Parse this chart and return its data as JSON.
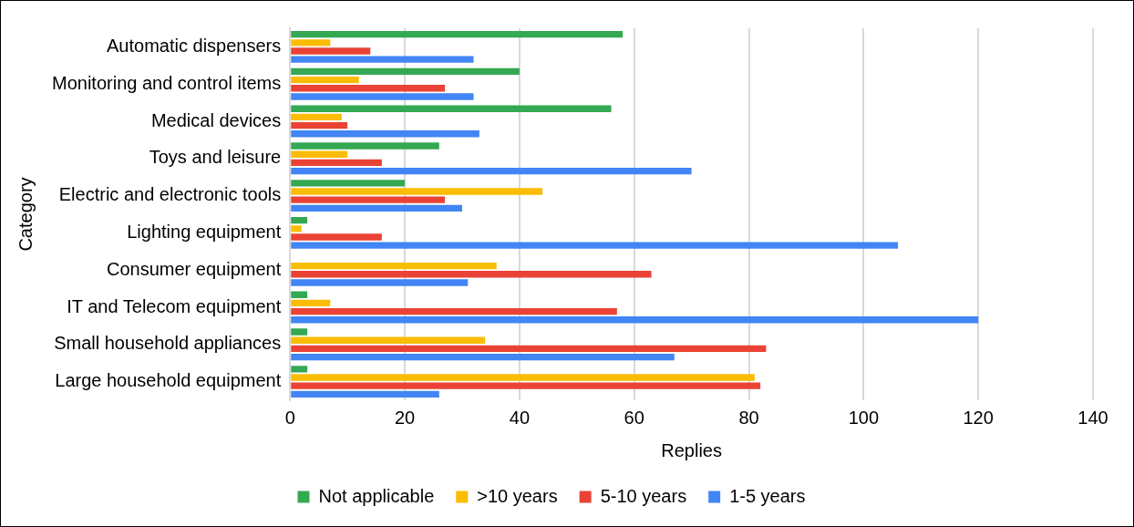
{
  "chart_data": {
    "type": "bar",
    "orientation": "horizontal",
    "xlabel": "Replies",
    "ylabel": "Category",
    "categories": [
      "Automatic dispensers",
      "Monitoring and control items",
      "Medical devices",
      "Toys and leisure",
      "Electric and electronic tools",
      "Lighting equipment",
      "Consumer equipment",
      "IT and Telecom equipment",
      "Small household appliances",
      "Large household equipment"
    ],
    "series": [
      {
        "name": "Not applicable",
        "color": "#34a853",
        "values": [
          58,
          40,
          56,
          26,
          20,
          3,
          0,
          3,
          3,
          3
        ]
      },
      {
        "name": ">10 years",
        "color": "#fbbc04",
        "values": [
          7,
          12,
          9,
          10,
          44,
          2,
          36,
          7,
          34,
          81
        ]
      },
      {
        "name": "5-10 years",
        "color": "#ea4335",
        "values": [
          14,
          27,
          10,
          16,
          27,
          16,
          63,
          57,
          83,
          82
        ]
      },
      {
        "name": "1-5 years",
        "color": "#4285f4",
        "values": [
          32,
          32,
          33,
          70,
          30,
          106,
          31,
          120,
          67,
          26
        ]
      }
    ],
    "xlim": [
      0,
      140
    ],
    "xticks": [
      0,
      20,
      40,
      60,
      80,
      100,
      120,
      140
    ],
    "grid": "x",
    "legend": "bottom"
  }
}
